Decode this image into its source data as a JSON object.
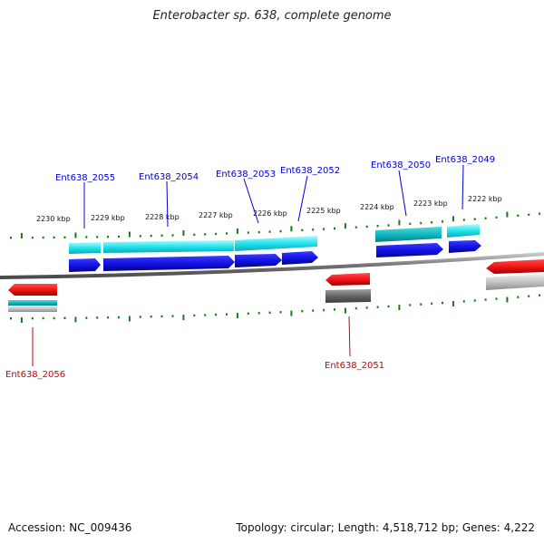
{
  "title": "Enterobacter sp. 638, complete genome",
  "footer": {
    "accession": "Accession: NC_009436",
    "stats": "Topology: circular; Length: 4,518,712 bp; Genes: 4,222"
  },
  "ruler": {
    "labels": [
      "2230 kbp",
      "2229 kbp",
      "2228 kbp",
      "2227 kbp",
      "2226 kbp",
      "2225 kbp",
      "2224 kbp",
      "2223 kbp",
      "2222 kbp"
    ]
  },
  "genes": [
    {
      "name": "Ent638_2056",
      "strand": "reverse",
      "color": "#cc0000"
    },
    {
      "name": "Ent638_2055",
      "strand": "forward",
      "color": "#0000aa"
    },
    {
      "name": "Ent638_2054",
      "strand": "forward",
      "color": "#0000aa"
    },
    {
      "name": "Ent638_2053",
      "strand": "forward",
      "color": "#0000aa"
    },
    {
      "name": "Ent638_2052",
      "strand": "forward",
      "color": "#0000aa"
    },
    {
      "name": "Ent638_2051",
      "strand": "reverse",
      "color": "#cc0000"
    },
    {
      "name": "Ent638_2050",
      "strand": "forward",
      "color": "#0000aa"
    },
    {
      "name": "Ent638_2049",
      "strand": "forward",
      "color": "#0000aa"
    }
  ],
  "colors": {
    "forward_gene": "#1010e0",
    "reverse_gene": "#ee1111",
    "cds_cyan": "#22e4ee",
    "cds_teal": "#12b8c0",
    "cds_gray": "#777777",
    "cds_lightgray": "#c4c4c4",
    "backbone": "#8a8a8a",
    "tick": "#1a7a1a"
  }
}
